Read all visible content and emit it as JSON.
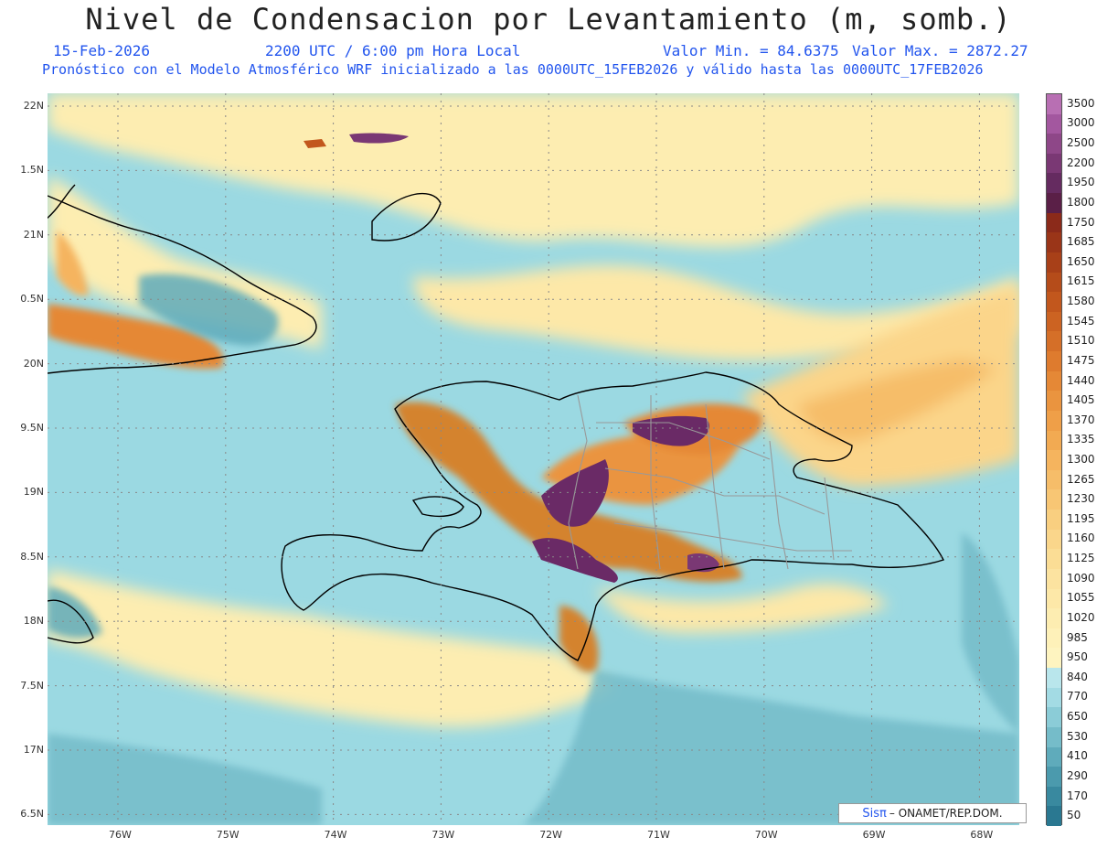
{
  "header": {
    "title": "Nivel de Condensacion por Levantamiento (m, somb.)",
    "date": "15-Feb-2026",
    "time": "2200 UTC / 6:00 pm Hora Local",
    "vmin": "Valor Min. = 84.6375",
    "vmax": "Valor Max. = 2872.27",
    "model_info": "Pronóstico con el Modelo Atmosférico WRF inicializado a las 0000UTC_15FEB2026 y válido hasta las  0000UTC_17FEB2026"
  },
  "map": {
    "lon_range": [
      -76.75,
      -67.6
    ],
    "lat_range": [
      6.4,
      22.1
    ],
    "lon_ticks": [
      "76W",
      "75W",
      "74W",
      "73W",
      "72W",
      "71W",
      "70W",
      "69W",
      "68W"
    ],
    "lat_ticks": [
      "22N",
      "1.5N",
      "21N",
      "0.5N",
      "20N",
      "9.5N",
      "19N",
      "8.5N",
      "18N",
      "7.5N",
      "17N",
      "6.5N"
    ],
    "colors": {
      "ocean_low": "#5fb1bd",
      "ocean_mid": "#9bd9e2",
      "land_high": "#d4832e",
      "peak": "#6a2a66",
      "coast": "#000000",
      "borders": "#999999"
    }
  },
  "legend": {
    "levels": [
      "3500",
      "3000",
      "2500",
      "2200",
      "1950",
      "1800",
      "1750",
      "1685",
      "1650",
      "1615",
      "1580",
      "1545",
      "1510",
      "1475",
      "1440",
      "1405",
      "1370",
      "1335",
      "1300",
      "1265",
      "1230",
      "1195",
      "1160",
      "1125",
      "1090",
      "1055",
      "1020",
      "985",
      "950",
      "840",
      "770",
      "650",
      "530",
      "410",
      "290",
      "170",
      "50"
    ],
    "colors": [
      "#b86fb3",
      "#a3579f",
      "#8e4788",
      "#7a3874",
      "#652b60",
      "#5a1f47",
      "#8b2a1a",
      "#9a3518",
      "#a84018",
      "#b54c1a",
      "#c2571d",
      "#cc6322",
      "#d56f28",
      "#de7b2e",
      "#e58836",
      "#ea943f",
      "#ef9f48",
      "#f2aa52",
      "#f5b45e",
      "#f6bd69",
      "#f8c674",
      "#f9cf80",
      "#fad68b",
      "#fbdd95",
      "#fce3a0",
      "#fde8a8",
      "#fdedb1",
      "#fef1b9",
      "#fef4c0",
      "#b9e6ec",
      "#a3dbe4",
      "#8bccd7",
      "#75bcc9",
      "#5fabbb",
      "#4b9aad",
      "#39899f",
      "#2a7891"
    ]
  },
  "credit": {
    "logo": "Sisπ",
    "text": "– ONAMET/REP.DOM."
  }
}
